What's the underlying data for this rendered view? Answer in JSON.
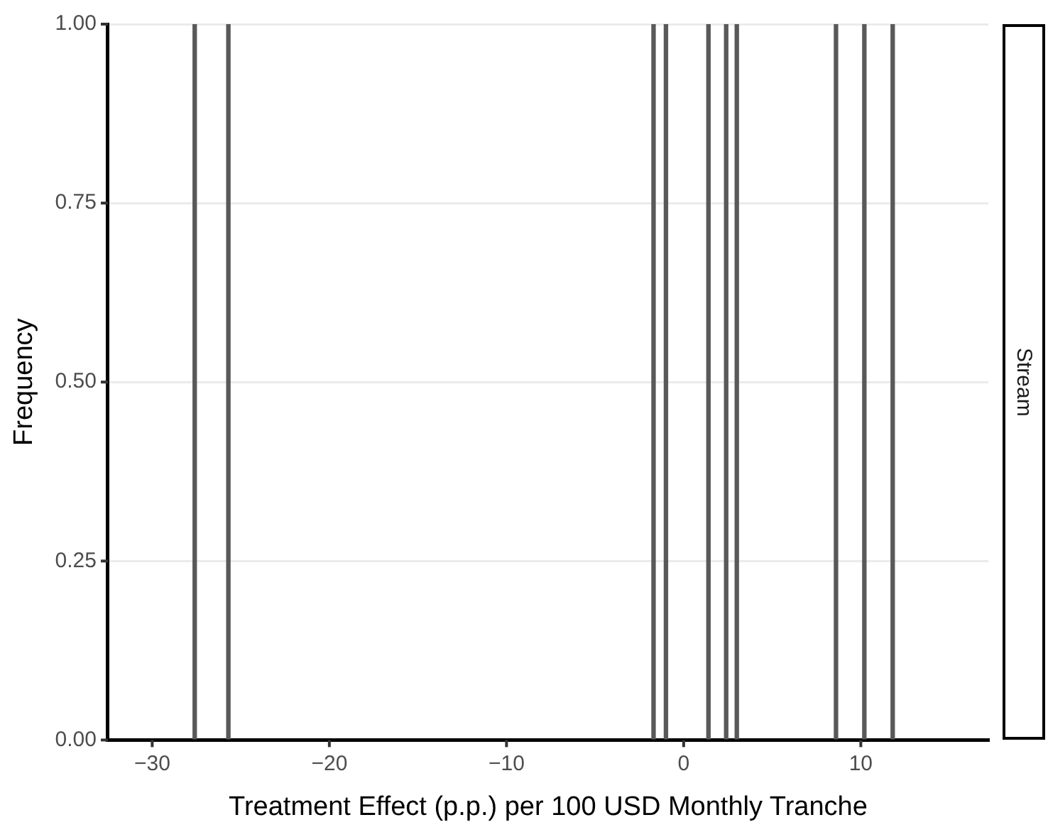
{
  "chart_data": {
    "type": "bar",
    "xlabel": "Treatment Effect (p.p.) per 100 USD Monthly Tranche",
    "ylabel": "Frequency",
    "annotations": [
      "Stream"
    ],
    "x": [
      -27.6,
      -25.7,
      -1.7,
      -1.0,
      1.4,
      2.4,
      3.0,
      8.6,
      10.2,
      11.8
    ],
    "values": [
      1,
      1,
      1,
      1,
      1,
      1,
      1,
      1,
      1,
      1
    ],
    "color": "#595959",
    "xlim": [
      -32.5,
      17.2
    ],
    "xticks": [
      {
        "value": -30,
        "label": "−30"
      },
      {
        "value": -20,
        "label": "−20"
      },
      {
        "value": -10,
        "label": "−10"
      },
      0,
      10
    ],
    "ylim": [
      0,
      1
    ],
    "yticks": [
      {
        "value": 0,
        "label": "0.00"
      },
      {
        "value": 0.25,
        "label": "0.25"
      },
      {
        "value": 0.5,
        "label": "0.50"
      },
      {
        "value": 0.75,
        "label": "0.75"
      },
      {
        "value": 1,
        "label": "1.00"
      }
    ],
    "grid": "y",
    "legend": false
  }
}
